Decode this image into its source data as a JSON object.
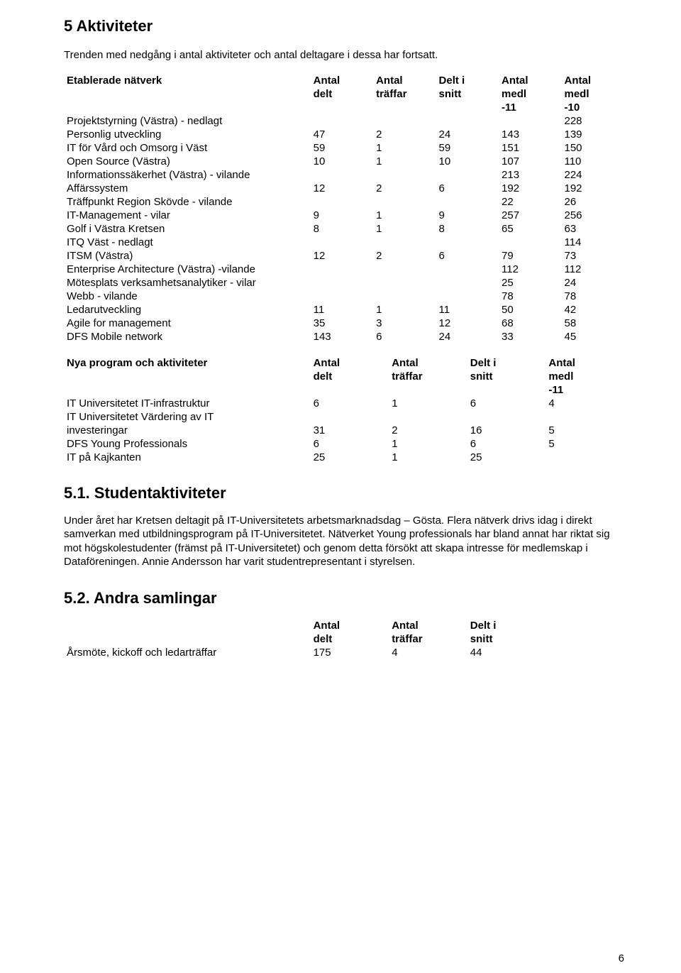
{
  "headings": {
    "h1": "5 Aktiviteter",
    "h2a": "5.1. Studentaktiviteter",
    "h2b": "5.2. Andra samlingar"
  },
  "paragraphs": {
    "intro": "Trenden med nedgång i antal aktiviteter och antal deltagare i dessa har fortsatt.",
    "student": "Under året har Kretsen deltagit på IT-Universitetets arbetsmarknadsdag – Gösta. Flera nätverk drivs idag i direkt samverkan med utbildningsprogram på IT-Universitetet. Nätverket Young professionals har bland annat har riktat sig mot högskolestudenter (främst på IT-Universitetet) och genom detta försökt att skapa intresse för medlemskap i Dataföreningen. Annie Andersson har varit studentrepresentant i styrelsen."
  },
  "page_number": "6",
  "table1": {
    "title": "Etablerade nätverk",
    "head": {
      "c1a": "Antal",
      "c1b": "delt",
      "c2a": "Antal",
      "c2b": "träffar",
      "c3a": "Delt i",
      "c3b": "snitt",
      "c4a": "Antal",
      "c4b": "medl",
      "c4c": "-11",
      "c5a": "Antal",
      "c5b": "medl",
      "c5c": "-10"
    },
    "rows": [
      {
        "label": "Projektstyrning (Västra) - nedlagt",
        "v": [
          "",
          "",
          "",
          "",
          "228"
        ]
      },
      {
        "label": "Personlig utveckling",
        "v": [
          "47",
          "2",
          "24",
          "143",
          "139"
        ]
      },
      {
        "label": "IT för Vård och Omsorg i Väst",
        "v": [
          "59",
          "1",
          "59",
          "151",
          "150"
        ]
      },
      {
        "label": "Open Source (Västra)",
        "v": [
          "10",
          "1",
          "10",
          "107",
          "110"
        ]
      },
      {
        "label": "Informationssäkerhet (Västra) - vilande",
        "v": [
          "",
          "",
          "",
          "213",
          "224"
        ]
      },
      {
        "label": "Affärssystem",
        "v": [
          "12",
          "2",
          "6",
          "192",
          "192"
        ]
      },
      {
        "label": "Träffpunkt Region Skövde - vilande",
        "v": [
          "",
          "",
          "",
          "22",
          "26"
        ]
      },
      {
        "label": "IT-Management - vilar",
        "v": [
          "9",
          "1",
          "9",
          "257",
          "256"
        ]
      },
      {
        "label": "Golf i Västra Kretsen",
        "v": [
          "8",
          "1",
          "8",
          "65",
          "63"
        ]
      },
      {
        "label": "ITQ Väst - nedlagt",
        "v": [
          "",
          "",
          "",
          "",
          "114"
        ]
      },
      {
        "label": "ITSM (Västra)",
        "v": [
          "12",
          "2",
          "6",
          "79",
          "73"
        ]
      },
      {
        "label": "Enterprise Architecture (Västra) -vilande",
        "v": [
          "",
          "",
          "",
          "112",
          "112"
        ]
      },
      {
        "label": "Mötesplats verksamhetsanalytiker - vilar",
        "v": [
          "",
          "",
          "",
          "25",
          "24"
        ]
      },
      {
        "label": "Webb - vilande",
        "v": [
          "",
          "",
          "",
          "78",
          "78"
        ]
      },
      {
        "label": "Ledarutveckling",
        "v": [
          "11",
          "1",
          "11",
          "50",
          "42"
        ]
      },
      {
        "label": "Agile for management",
        "v": [
          "35",
          "3",
          "12",
          "68",
          "58"
        ]
      },
      {
        "label": "DFS Mobile network",
        "v": [
          "143",
          "6",
          "24",
          "33",
          "45"
        ]
      }
    ]
  },
  "table2": {
    "title": "Nya program och aktiviteter",
    "head": {
      "c1a": "Antal",
      "c1b": "delt",
      "c2a": "Antal",
      "c2b": "träffar",
      "c3a": "Delt i",
      "c3b": "snitt",
      "c4a": "Antal",
      "c4b": "medl",
      "c4c": "-11"
    },
    "rows": [
      {
        "label": "IT Universitetet IT-infrastruktur",
        "v": [
          "6",
          "1",
          "6",
          "4"
        ]
      },
      {
        "label": "IT Universitetet Värdering av IT investeringar",
        "label2": "investeringar",
        "label1": "IT Universitetet Värdering av IT",
        "v": [
          "31",
          "2",
          "16",
          "5"
        ]
      },
      {
        "label": "DFS Young Professionals",
        "v": [
          "6",
          "1",
          "6",
          "5"
        ]
      },
      {
        "label": "IT på Kajkanten",
        "v": [
          "25",
          "1",
          "25",
          ""
        ]
      }
    ]
  },
  "table3": {
    "head": {
      "c1a": "Antal",
      "c1b": "delt",
      "c2a": "Antal",
      "c2b": "träffar",
      "c3a": "Delt i",
      "c3b": "snitt"
    },
    "row": {
      "label": "Årsmöte, kickoff och ledarträffar",
      "v": [
        "175",
        "4",
        "44"
      ]
    }
  }
}
